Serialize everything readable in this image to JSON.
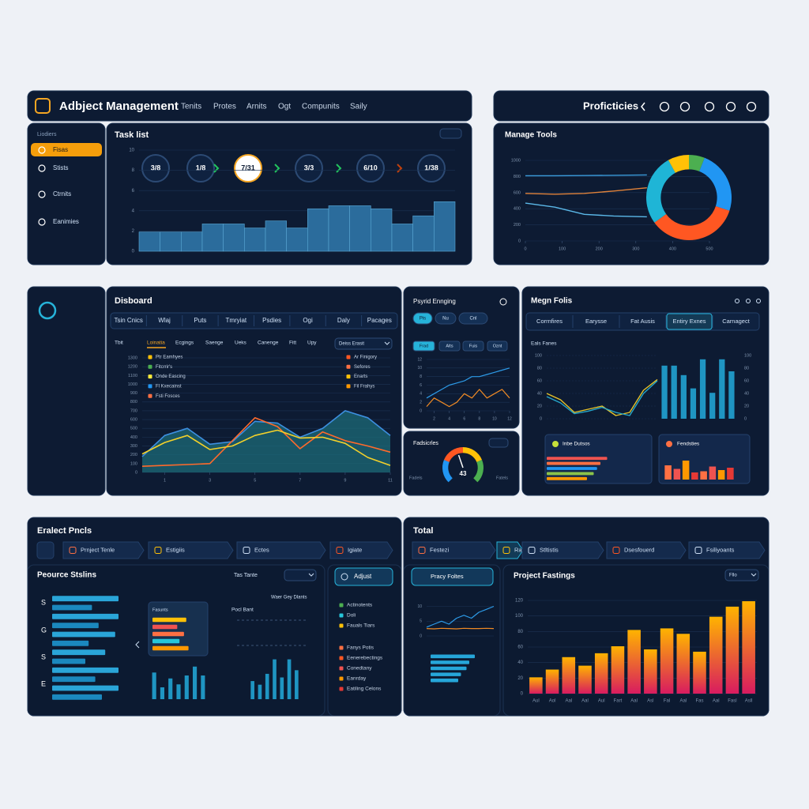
{
  "header": {
    "title": "Adbject Management",
    "nav": [
      "Tenits",
      "Protes",
      "Arnits",
      "Ogt",
      "Compunits",
      "Saily"
    ]
  },
  "top_right": {
    "title": "Proficticies"
  },
  "sidebar": {
    "heading": "Liodiers",
    "items": [
      "Fisas",
      "Stists",
      "Ctrnits",
      "Eanimies"
    ]
  },
  "task_list": {
    "title": "Task list",
    "steps": [
      "3/8",
      "1/8",
      "7/31",
      "3/3",
      "6/10",
      "1/38"
    ],
    "chart": {
      "type": "bar",
      "ylim": [
        0,
        10
      ],
      "yticks": [
        0,
        2,
        4,
        6,
        8,
        10
      ],
      "color": "#2b6c9c",
      "values": [
        1.9,
        1.9,
        1.9,
        2.7,
        2.7,
        2.3,
        3.0,
        2.3,
        4.2,
        4.5,
        4.5,
        4.2,
        2.7,
        3.5,
        4.9
      ]
    }
  },
  "manage_tools": {
    "title": "Manage Tools",
    "chart": {
      "type": "line",
      "x": [
        0,
        80,
        160,
        240,
        330
      ],
      "xlim": [
        0,
        500
      ],
      "xticks": [
        0,
        100,
        200,
        300,
        400,
        500
      ],
      "ylim": [
        0,
        1000
      ],
      "yticks": [
        0,
        200,
        400,
        600,
        800,
        1000
      ],
      "series": [
        {
          "color": "#3a9ad9",
          "values": [
            810,
            810,
            812,
            815,
            820
          ]
        },
        {
          "color": "#e0823a",
          "values": [
            590,
            580,
            590,
            620,
            660
          ]
        },
        {
          "color": "#5bb8e8",
          "values": [
            470,
            420,
            330,
            310,
            300
          ]
        }
      ]
    },
    "donut": {
      "type": "donut",
      "values": [
        6,
        24,
        35,
        27,
        8
      ],
      "colors": [
        "#4caf50",
        "#2196f3",
        "#ff5722",
        "#1fb5d6",
        "#ffc107"
      ]
    }
  },
  "dashboard": {
    "title": "Disboard",
    "tabs": [
      "Tsin Cnics",
      "Wlaj",
      "Puts",
      "Tmryiat",
      "Psdies",
      "Ogi",
      "Daly",
      "Pacages"
    ],
    "subtabs": [
      "Tbit",
      "Loinatia",
      "Ecgings",
      "Saenge",
      "Ueks",
      "Canenge",
      "Fitt",
      "Upy"
    ],
    "dropdown": "Deiss Erasit",
    "legend_left": {
      "labels": [
        "Ptr Eamhyes",
        "Fitcrrir's",
        "Onde Eascing",
        "Fl Kxecainst",
        "Fsti Fosces"
      ],
      "colors": [
        "#ffc107",
        "#4caf50",
        "#ffeb3b",
        "#2196f3",
        "#ff7043"
      ]
    },
    "legend_right": {
      "labels": [
        "Ar Finigory",
        "Sefores",
        "Enarts",
        "Fil Frahys"
      ],
      "colors": [
        "#ff5722",
        "#ff7043",
        "#ffc107",
        "#ff9800"
      ]
    },
    "chart": {
      "type": "line",
      "x": [
        0,
        1,
        2,
        3,
        4,
        5,
        6,
        7,
        8,
        9,
        10,
        11
      ],
      "xlim": [
        0,
        11
      ],
      "xticks": [
        1,
        3,
        5,
        7,
        9,
        11
      ],
      "ylim": [
        0,
        1300
      ],
      "yticks": [
        0,
        100,
        200,
        300,
        400,
        500,
        600,
        700,
        800,
        900,
        1000,
        1100,
        1200,
        1300
      ],
      "series": [
        {
          "color": "#3d8fe0",
          "fill": "#1c6b78",
          "values": [
            180,
            420,
            500,
            320,
            350,
            580,
            560,
            400,
            500,
            700,
            620,
            420
          ]
        },
        {
          "color": "#ff6a2b",
          "values": [
            70,
            80,
            90,
            100,
            360,
            620,
            520,
            270,
            460,
            360,
            300,
            230
          ]
        },
        {
          "color": "#f3d12a",
          "values": [
            210,
            340,
            420,
            260,
            300,
            420,
            480,
            390,
            400,
            330,
            170,
            80
          ]
        }
      ]
    }
  },
  "psyrid": {
    "title": "Psyrid Ennging",
    "toggles": [
      "Pis",
      "Nu",
      "Cnl"
    ],
    "filters": [
      "Frad",
      "Alts",
      "Fuis",
      "Oznt"
    ],
    "chart": {
      "type": "line",
      "x": [
        1,
        2,
        3,
        4,
        5,
        6,
        7,
        8,
        9,
        10,
        11,
        12
      ],
      "xlim": [
        1,
        12
      ],
      "xticks": [
        2,
        4,
        6,
        8,
        10,
        12
      ],
      "ylim": [
        0,
        12
      ],
      "yticks": [
        0,
        2,
        4,
        6,
        8,
        10,
        12
      ],
      "series": [
        {
          "color": "#2d9be8",
          "values": [
            3,
            4,
            5,
            6,
            6.5,
            7,
            8,
            8,
            8.5,
            9,
            9.5,
            10
          ]
        },
        {
          "color": "#f08a24",
          "values": [
            1,
            3,
            2,
            1,
            2,
            4,
            3,
            5,
            3,
            4,
            5,
            3
          ]
        }
      ]
    }
  },
  "fadsicrles": {
    "title": "Fadsicrles",
    "left": "Fadels",
    "right": "Fatels",
    "gauge": {
      "type": "gauge",
      "ylim": [
        0,
        100
      ],
      "value": 43,
      "colors": [
        "#2196f3",
        "#ff5722",
        "#ffc107",
        "#4caf50"
      ]
    }
  },
  "megn": {
    "title": "Megn Folis",
    "tabs": [
      "Corrnfires",
      "Earysse",
      "Fat Ausis",
      "Entiry Exnes",
      "Carnagect"
    ],
    "subtitle": "Eals Fanes",
    "chart": {
      "type": "line",
      "x": [
        0,
        1,
        2,
        3,
        4,
        5,
        6,
        7,
        8
      ],
      "xlim": [
        0,
        8
      ],
      "ylim": [
        0,
        100
      ],
      "yticks": [
        0,
        20,
        40,
        60,
        80,
        100
      ],
      "series": [
        {
          "color": "#e6c229",
          "values": [
            40,
            30,
            10,
            15,
            20,
            5,
            10,
            45,
            62
          ]
        },
        {
          "color": "#26a6c9",
          "values": [
            35,
            25,
            8,
            12,
            18,
            10,
            5,
            40,
            60
          ]
        }
      ]
    },
    "bars": {
      "type": "bar",
      "ylim": [
        0,
        100
      ],
      "color": "#1f95c2",
      "values": [
        84,
        84,
        69,
        48,
        94,
        41,
        94,
        75
      ]
    },
    "cards": [
      {
        "title": "Inbe Dutsos",
        "chart": {
          "type": "hbar",
          "xlim": [
            0,
            100
          ],
          "values": [
            90,
            80,
            75,
            70,
            60
          ],
          "colors": [
            "#ef5350",
            "#ff7043",
            "#2196f3",
            "#8bc34a",
            "#ff9800"
          ]
        }
      },
      {
        "title": "Fendsties",
        "chart": {
          "type": "bar",
          "ylim": [
            0,
            100
          ],
          "values": [
            60,
            45,
            80,
            30,
            35,
            55,
            40,
            50
          ],
          "colors": [
            "#ff7043",
            "#ef5350",
            "#ff9800",
            "#e53935",
            "#ff7043",
            "#ef5350",
            "#ff9800",
            "#e53935"
          ]
        }
      }
    ]
  },
  "project": {
    "title": "Eralect Pncls",
    "crumbs": [
      "Prnject Tenle",
      "Estigiis",
      "Ectes",
      "Igiate"
    ]
  },
  "resource": {
    "title": "Peource Stslins",
    "filter": "Tas Tante",
    "rows": [
      "S",
      "G",
      "S",
      "E"
    ],
    "note": "Waer Gey Dlants",
    "mini_title": "Pocl Bant",
    "card_title": "Fasunts",
    "hbars": {
      "type": "hbar",
      "xlim": [
        0,
        100
      ],
      "values": [
        100,
        60,
        100,
        70,
        95,
        55,
        80,
        50,
        100,
        65,
        100,
        75
      ],
      "colors": [
        "#2aa5d8",
        "#1b88be"
      ]
    },
    "card_bars": {
      "type": "hbar",
      "xlim": [
        0,
        100
      ],
      "values": [
        75,
        55,
        70,
        60,
        80
      ],
      "colors": [
        "#ffc107",
        "#ef5350",
        "#ff7043",
        "#26c6da",
        "#ff9800"
      ]
    },
    "small_bars_a": {
      "type": "bar",
      "ylim": [
        0,
        60
      ],
      "color": "#1f95c2",
      "values": [
        45,
        20,
        35,
        25,
        40,
        55,
        40
      ]
    },
    "small_bars_b": {
      "type": "bar",
      "ylim": [
        0,
        60
      ],
      "color": "#1f95c2",
      "values": [
        25,
        20,
        35,
        55,
        30,
        55,
        40
      ]
    }
  },
  "adjust": {
    "button": "Adjust",
    "legend1": {
      "labels": [
        "Actinotents",
        "Doli",
        "Fauals Tiars"
      ],
      "colors": [
        "#4caf50",
        "#26c6da",
        "#ffc107"
      ]
    },
    "legend2": {
      "labels": [
        "Fanys Potis",
        "Eenerebectings",
        "Conedtany",
        "Eanrday",
        "Eatiling Celons"
      ],
      "colors": [
        "#ff7043",
        "#ff5722",
        "#ef5350",
        "#ff9800",
        "#e53935"
      ]
    }
  },
  "total": {
    "title": "Total",
    "crumbs": [
      "Festezi",
      "Rae",
      "Stltistis",
      "Dsesfouerd",
      "Fsiliyoants"
    ],
    "pracy": {
      "button": "Pracy Foltes",
      "chart": {
        "type": "line",
        "x": [
          1,
          2,
          3,
          4,
          5,
          6,
          7,
          8,
          9,
          10
        ],
        "xlim": [
          1,
          10
        ],
        "ylim": [
          0,
          12
        ],
        "yticks": [
          0,
          5,
          10
        ],
        "series": [
          {
            "color": "#2d9be8",
            "values": [
              3,
              4,
              5,
              4,
              6,
              7,
              6,
              8,
              9,
              10
            ]
          },
          {
            "color": "#f08a24",
            "values": [
              2.5,
              2.4,
              2.6,
              2.5,
              2.4,
              2.6,
              2.5,
              2.5,
              2.6,
              2.5
            ]
          }
        ]
      },
      "hbars": {
        "type": "hbar",
        "xlim": [
          0,
          100
        ],
        "values": [
          80,
          70,
          65,
          55,
          50
        ],
        "colors": [
          "#26a6d9"
        ]
      }
    },
    "fastings": {
      "title": "Project Fastings",
      "dropdown": "Fllo",
      "chart": {
        "type": "bar",
        "categories": [
          "Aul",
          "Aol",
          "Aal",
          "Aal",
          "Aul",
          "Fart",
          "Aal",
          "Asl",
          "Fal",
          "Aal",
          "Fas",
          "Aal",
          "Fasl",
          "Asll"
        ],
        "values": [
          21,
          31,
          47,
          36,
          52,
          61,
          82,
          57,
          84,
          77,
          54,
          99,
          112,
          119
        ],
        "ylim": [
          0,
          120
        ],
        "yticks": [
          0,
          20,
          40,
          60,
          80,
          100,
          120
        ],
        "gradient": [
          "#ffb300",
          "#d81b60"
        ]
      }
    }
  }
}
